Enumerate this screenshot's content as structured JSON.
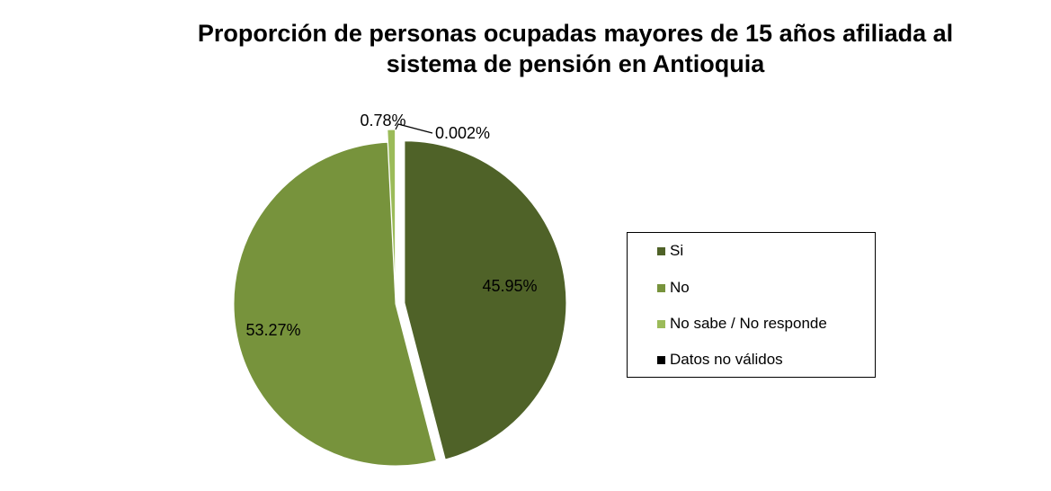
{
  "chart_data": {
    "type": "pie",
    "title_lines": [
      "Proporción de personas ocupadas mayores de 15 años afiliada al",
      "sistema de pensión en Antioquia"
    ],
    "slices": [
      {
        "name": "Si",
        "value": 45.95,
        "label": "45.95%",
        "color": "#4f6228"
      },
      {
        "name": "No",
        "value": 53.27,
        "label": "53.27%",
        "color": "#77933c"
      },
      {
        "name": "No sabe / No responde",
        "value": 0.78,
        "label": "0.78%",
        "color": "#9bbb59"
      },
      {
        "name": "Datos no válidos",
        "value": 0.002,
        "label": "0.002%",
        "color": "#000000"
      }
    ],
    "legend_position": "right"
  }
}
